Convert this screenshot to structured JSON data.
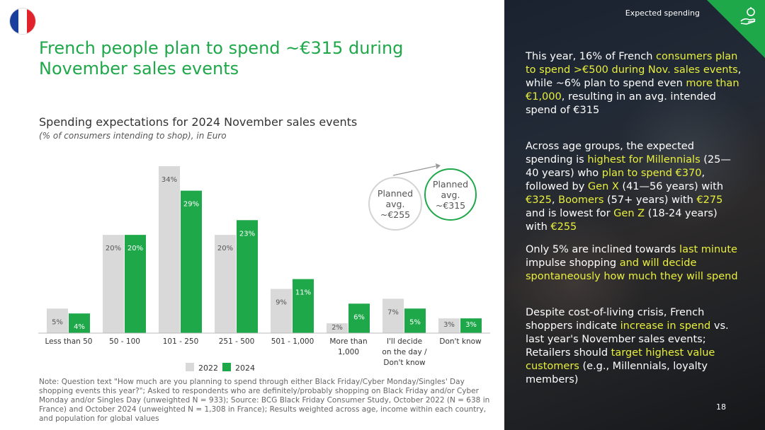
{
  "flag": {
    "colors": [
      "#1a3e9c",
      "#ffffff",
      "#e1222b"
    ]
  },
  "title": "French people plan to spend ~€315 during November sales events",
  "subtitle": "Spending expectations for 2024 November sales events",
  "subnote": "(% of consumers intending to shop), in Euro",
  "chart_data": {
    "type": "bar",
    "categories": [
      "Less than 50",
      "50 - 100",
      "101 - 250",
      "251 - 500",
      "501 - 1,000",
      "More than 1,000",
      "I'll decide on the day / Don't know",
      "Don't know"
    ],
    "category_lines": [
      [
        "Less than 50"
      ],
      [
        "50 - 100"
      ],
      [
        "101 - 250"
      ],
      [
        "251 - 500"
      ],
      [
        "501 - 1,000"
      ],
      [
        "More than",
        "1,000"
      ],
      [
        "I'll decide",
        "on the day /",
        "Don't know"
      ],
      [
        "Don't know"
      ]
    ],
    "series": [
      {
        "name": "2022",
        "color": "#d9d9d9",
        "values": [
          5,
          20,
          34,
          20,
          9,
          2,
          7,
          3
        ]
      },
      {
        "name": "2024",
        "color": "#1ea84a",
        "values": [
          4,
          20,
          29,
          23,
          11,
          6,
          5,
          3
        ]
      }
    ],
    "ylim": [
      0,
      36
    ],
    "legend_position": "bottom-center"
  },
  "bubbles": {
    "b2022": "Planned\navg.\n~€255",
    "b2024": "Planned\navg.\n~€315"
  },
  "note": "Note: Question text \"How much are you planning to spend through either Black Friday/Cyber Monday/Singles' Day shopping events this year?\"; Asked to respondents who are definitely/probably shopping on Black Friday and/or Cyber Monday and/or Singles Day (unweighted N = 933); Source: BCG Black Friday Consumer Study, October 2022 (N = 638 in France) and October 2024 (unweighted N = 1,308 in France); Results weighted across age, income within each country, and population for global values",
  "right_panel": {
    "section_tag": "Expected spending",
    "corner_icon": "hand-money-icon",
    "page_number": "18",
    "p1": [
      "This year, 16% of French ",
      "consumers plan to spend >€500 during Nov. sales events",
      ", while ~6% plan to spend even ",
      "more than €1,000",
      ", resulting in an avg. intended spend of €315"
    ],
    "p2": [
      "Across age groups, the expected spending is ",
      "highest for Millennials",
      " (25—40 years) who ",
      "plan to spend €370",
      ", followed by ",
      "Gen X",
      " (41—56 years) with ",
      "€325",
      ", ",
      "Boomers",
      " (57+ years) with ",
      "€275",
      " and is lowest for ",
      "Gen Z",
      " (18-24 years) with ",
      "€255"
    ],
    "p3": [
      "Only 5% are inclined towards",
      " last minute ",
      "impulse shopping",
      " and will decide spontaneously how much they will spend"
    ],
    "p4": [
      "Despite cost-of-living crisis, French shoppers indicate ",
      "increase in spend",
      " vs. last year's November sales events; Retailers should ",
      "target highest value customers",
      " (e.g., Millennials, loyalty members)"
    ],
    "highlight_color": "#e8ef3c"
  }
}
